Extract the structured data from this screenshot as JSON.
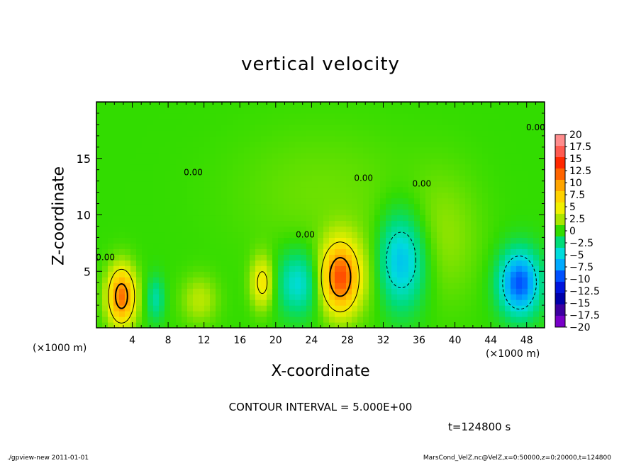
{
  "chart_data": {
    "type": "heatmap",
    "title": "vertical velocity",
    "xlabel": "X-coordinate",
    "ylabel": "Z-coordinate",
    "x_unit": "(×1000 m)",
    "y_unit": "(×1000 m)",
    "xlim": [
      0,
      50
    ],
    "ylim": [
      0,
      20
    ],
    "x_ticks": [
      4,
      8,
      12,
      16,
      20,
      24,
      28,
      32,
      36,
      40,
      44,
      48
    ],
    "y_ticks": [
      5,
      10,
      15
    ],
    "colorbar": {
      "min": -20,
      "max": 20,
      "labels": [
        "20",
        "17.5",
        "15",
        "12.5",
        "10",
        "7.5",
        "5",
        "2.5",
        "0",
        "−2.5",
        "−5",
        "−7.5",
        "−10",
        "−12.5",
        "−15",
        "−17.5",
        "−20"
      ],
      "colors": [
        "#ff8c8c",
        "#ff5a50",
        "#ff2800",
        "#ff6400",
        "#ffa500",
        "#ffd200",
        "#f0f000",
        "#aae600",
        "#32dc00",
        "#00dc78",
        "#00dcdc",
        "#00aaff",
        "#0050ff",
        "#0014dc",
        "#0000aa",
        "#3c00a0",
        "#7800c8"
      ]
    },
    "features": [
      {
        "x": 2.8,
        "z": 2.8,
        "peak": 12,
        "sx": 1.1,
        "sz": 1.8
      },
      {
        "x": 6.6,
        "z": 2.6,
        "peak": -3.5,
        "sx": 0.7,
        "sz": 1.4
      },
      {
        "x": 11.5,
        "z": 2.5,
        "peak": 3,
        "sx": 1.4,
        "sz": 1.5
      },
      {
        "x": 18.5,
        "z": 4.0,
        "peak": 6,
        "sx": 0.9,
        "sz": 1.6
      },
      {
        "x": 22.5,
        "z": 4.0,
        "peak": -5,
        "sx": 1.7,
        "sz": 2.0
      },
      {
        "x": 27.2,
        "z": 4.5,
        "peak": 13.5,
        "sx": 1.5,
        "sz": 2.2
      },
      {
        "x": 30.8,
        "z": 5.2,
        "peak": 1.5,
        "sx": 1.6,
        "sz": 3.2
      },
      {
        "x": 34.0,
        "z": 6.0,
        "peak": -7,
        "sx": 2.0,
        "sz": 3.0
      },
      {
        "x": 38.5,
        "z": 8.0,
        "peak": 2,
        "sx": 3.0,
        "sz": 4.0
      },
      {
        "x": 47.2,
        "z": 4.0,
        "peak": -10,
        "sx": 1.6,
        "sz": 2.0
      },
      {
        "x": 25.0,
        "z": 12.0,
        "peak": 1.2,
        "sx": 7.0,
        "sz": 4.0
      }
    ],
    "contour_interval": "CONTOUR INTERVAL = 5.000E+00",
    "contour_labels": [
      {
        "text": "0.00",
        "x": 49.0,
        "z": 17.5
      },
      {
        "text": "0.00",
        "x": 1.0,
        "z": 6.0
      },
      {
        "text": "0.00",
        "x": 10.8,
        "z": 13.5
      },
      {
        "text": "0.00",
        "x": 23.3,
        "z": 8.0
      },
      {
        "text": "0.00",
        "x": 29.8,
        "z": 13.0
      },
      {
        "text": "0.00",
        "x": 36.3,
        "z": 12.5
      }
    ]
  },
  "annotations": {
    "time": "t=124800 s",
    "footer_left": "./gpview-new   2011-01-01",
    "footer_right": "MarsCond_VelZ.nc@VelZ,x=0:50000,z=0:20000,t=124800"
  }
}
